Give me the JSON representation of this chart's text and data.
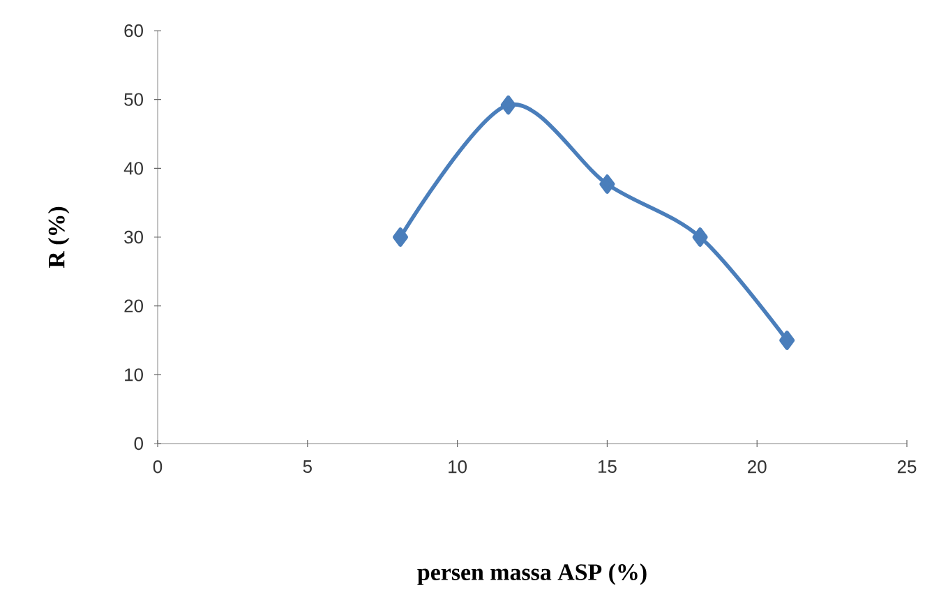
{
  "chart_data": {
    "type": "line",
    "xlabel": "persen massa ASP (%)",
    "ylabel": "R (%)",
    "x": [
      8.1,
      11.7,
      15,
      18.1,
      21
    ],
    "series": [
      {
        "color": "#4a7ebb",
        "values": [
          30,
          49.2,
          37.7,
          30,
          15
        ]
      }
    ],
    "xlim": [
      0,
      25
    ],
    "ylim": [
      0,
      60
    ],
    "xticks": [
      0,
      5,
      10,
      15,
      20,
      25
    ],
    "yticks": [
      0,
      10,
      20,
      30,
      40,
      50,
      60
    ],
    "marker": "diamond",
    "line_style": "solid"
  }
}
